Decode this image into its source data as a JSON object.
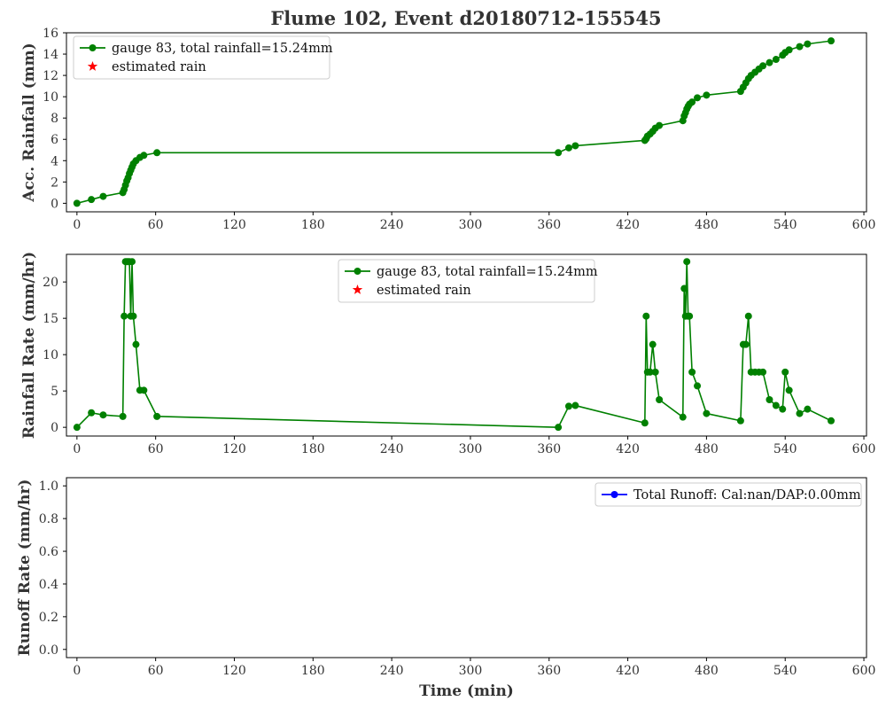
{
  "chart_data": [
    {
      "type": "line",
      "title": "Flume 102, Event d20180712-155545",
      "xlabel": "",
      "ylabel": "Acc. Rainfall (mm)",
      "xlim": [
        -8,
        602
      ],
      "ylim": [
        -0.8,
        16
      ],
      "xticks": [
        0,
        60,
        120,
        180,
        240,
        300,
        360,
        420,
        480,
        540,
        600
      ],
      "yticks": [
        0,
        2,
        4,
        6,
        8,
        10,
        12,
        14,
        16
      ],
      "legend_position": "top-left",
      "series": [
        {
          "name": "gauge 83, total rainfall=15.24mm",
          "color": "#008000",
          "marker": "circle",
          "x": [
            0,
            11,
            20,
            35,
            36,
            37,
            38,
            39,
            40,
            41,
            42,
            43,
            45,
            48,
            51,
            61,
            367,
            375,
            380,
            433,
            434,
            435,
            437,
            439,
            441,
            444,
            462,
            463,
            464,
            465,
            466,
            467,
            469,
            473,
            480,
            506,
            508,
            510,
            512,
            514,
            517,
            520,
            523,
            528,
            533,
            538,
            540,
            543,
            551,
            557,
            575
          ],
          "values": [
            0.0,
            0.35,
            0.65,
            1.0,
            1.3,
            1.7,
            2.1,
            2.4,
            2.8,
            3.1,
            3.4,
            3.7,
            4.0,
            4.3,
            4.5,
            4.75,
            4.75,
            5.2,
            5.4,
            5.9,
            6.05,
            6.3,
            6.5,
            6.75,
            7.05,
            7.3,
            7.75,
            8.2,
            8.5,
            8.85,
            9.1,
            9.3,
            9.5,
            9.9,
            10.15,
            10.5,
            10.9,
            11.3,
            11.7,
            12.0,
            12.3,
            12.6,
            12.9,
            13.2,
            13.5,
            13.9,
            14.15,
            14.4,
            14.7,
            14.95,
            15.24
          ]
        },
        {
          "name": "estimated rain",
          "color": "#ff0000",
          "marker": "star",
          "x": [],
          "values": []
        }
      ]
    },
    {
      "type": "line",
      "title": "",
      "xlabel": "",
      "ylabel": "Rainfall Rate (mm/hr)",
      "xlim": [
        -8,
        602
      ],
      "ylim": [
        -1.2,
        23.8
      ],
      "xticks": [
        0,
        60,
        120,
        180,
        240,
        300,
        360,
        420,
        480,
        540,
        600
      ],
      "yticks": [
        0,
        5,
        10,
        15,
        20
      ],
      "legend_position": "top-center",
      "series": [
        {
          "name": "gauge 83, total rainfall=15.24mm",
          "color": "#008000",
          "marker": "circle",
          "x": [
            0,
            11,
            20,
            35,
            36,
            37,
            38,
            39,
            40,
            41,
            42,
            43,
            45,
            48,
            51,
            61,
            367,
            375,
            380,
            433,
            434,
            435,
            437,
            439,
            441,
            444,
            462,
            463,
            464,
            465,
            466,
            467,
            469,
            473,
            480,
            506,
            508,
            510,
            512,
            514,
            517,
            520,
            523,
            528,
            533,
            538,
            540,
            543,
            551,
            557,
            575
          ],
          "values": [
            0,
            2.0,
            1.7,
            1.5,
            15.3,
            22.8,
            22.8,
            22.8,
            22.8,
            15.3,
            22.8,
            15.3,
            11.4,
            5.1,
            5.1,
            1.5,
            0,
            2.9,
            3.0,
            0.6,
            15.3,
            7.6,
            7.6,
            11.4,
            7.6,
            3.8,
            1.4,
            19.1,
            15.3,
            22.8,
            15.3,
            15.3,
            7.6,
            5.7,
            1.9,
            0.9,
            11.4,
            11.4,
            15.3,
            7.6,
            7.6,
            7.6,
            7.6,
            3.8,
            3.0,
            2.5,
            7.6,
            5.1,
            1.9,
            2.5,
            0.9
          ]
        },
        {
          "name": "estimated rain",
          "color": "#ff0000",
          "marker": "star",
          "x": [],
          "values": []
        }
      ]
    },
    {
      "type": "line",
      "title": "",
      "xlabel": "Time (min)",
      "ylabel": "Runoff Rate (mm/hr)",
      "xlim": [
        -8,
        602
      ],
      "ylim": [
        -0.05,
        1.05
      ],
      "xticks": [
        0,
        60,
        120,
        180,
        240,
        300,
        360,
        420,
        480,
        540,
        600
      ],
      "yticks": [
        0.0,
        0.2,
        0.4,
        0.6,
        0.8,
        1.0
      ],
      "ytick_labels": [
        "0.0",
        "0.2",
        "0.4",
        "0.6",
        "0.8",
        "1.0"
      ],
      "legend_position": "top-right",
      "series": [
        {
          "name": "Total Runoff: Cal:nan/DAP:0.00mm",
          "color": "#0000ff",
          "marker": "circle",
          "x": [],
          "values": []
        }
      ]
    }
  ]
}
